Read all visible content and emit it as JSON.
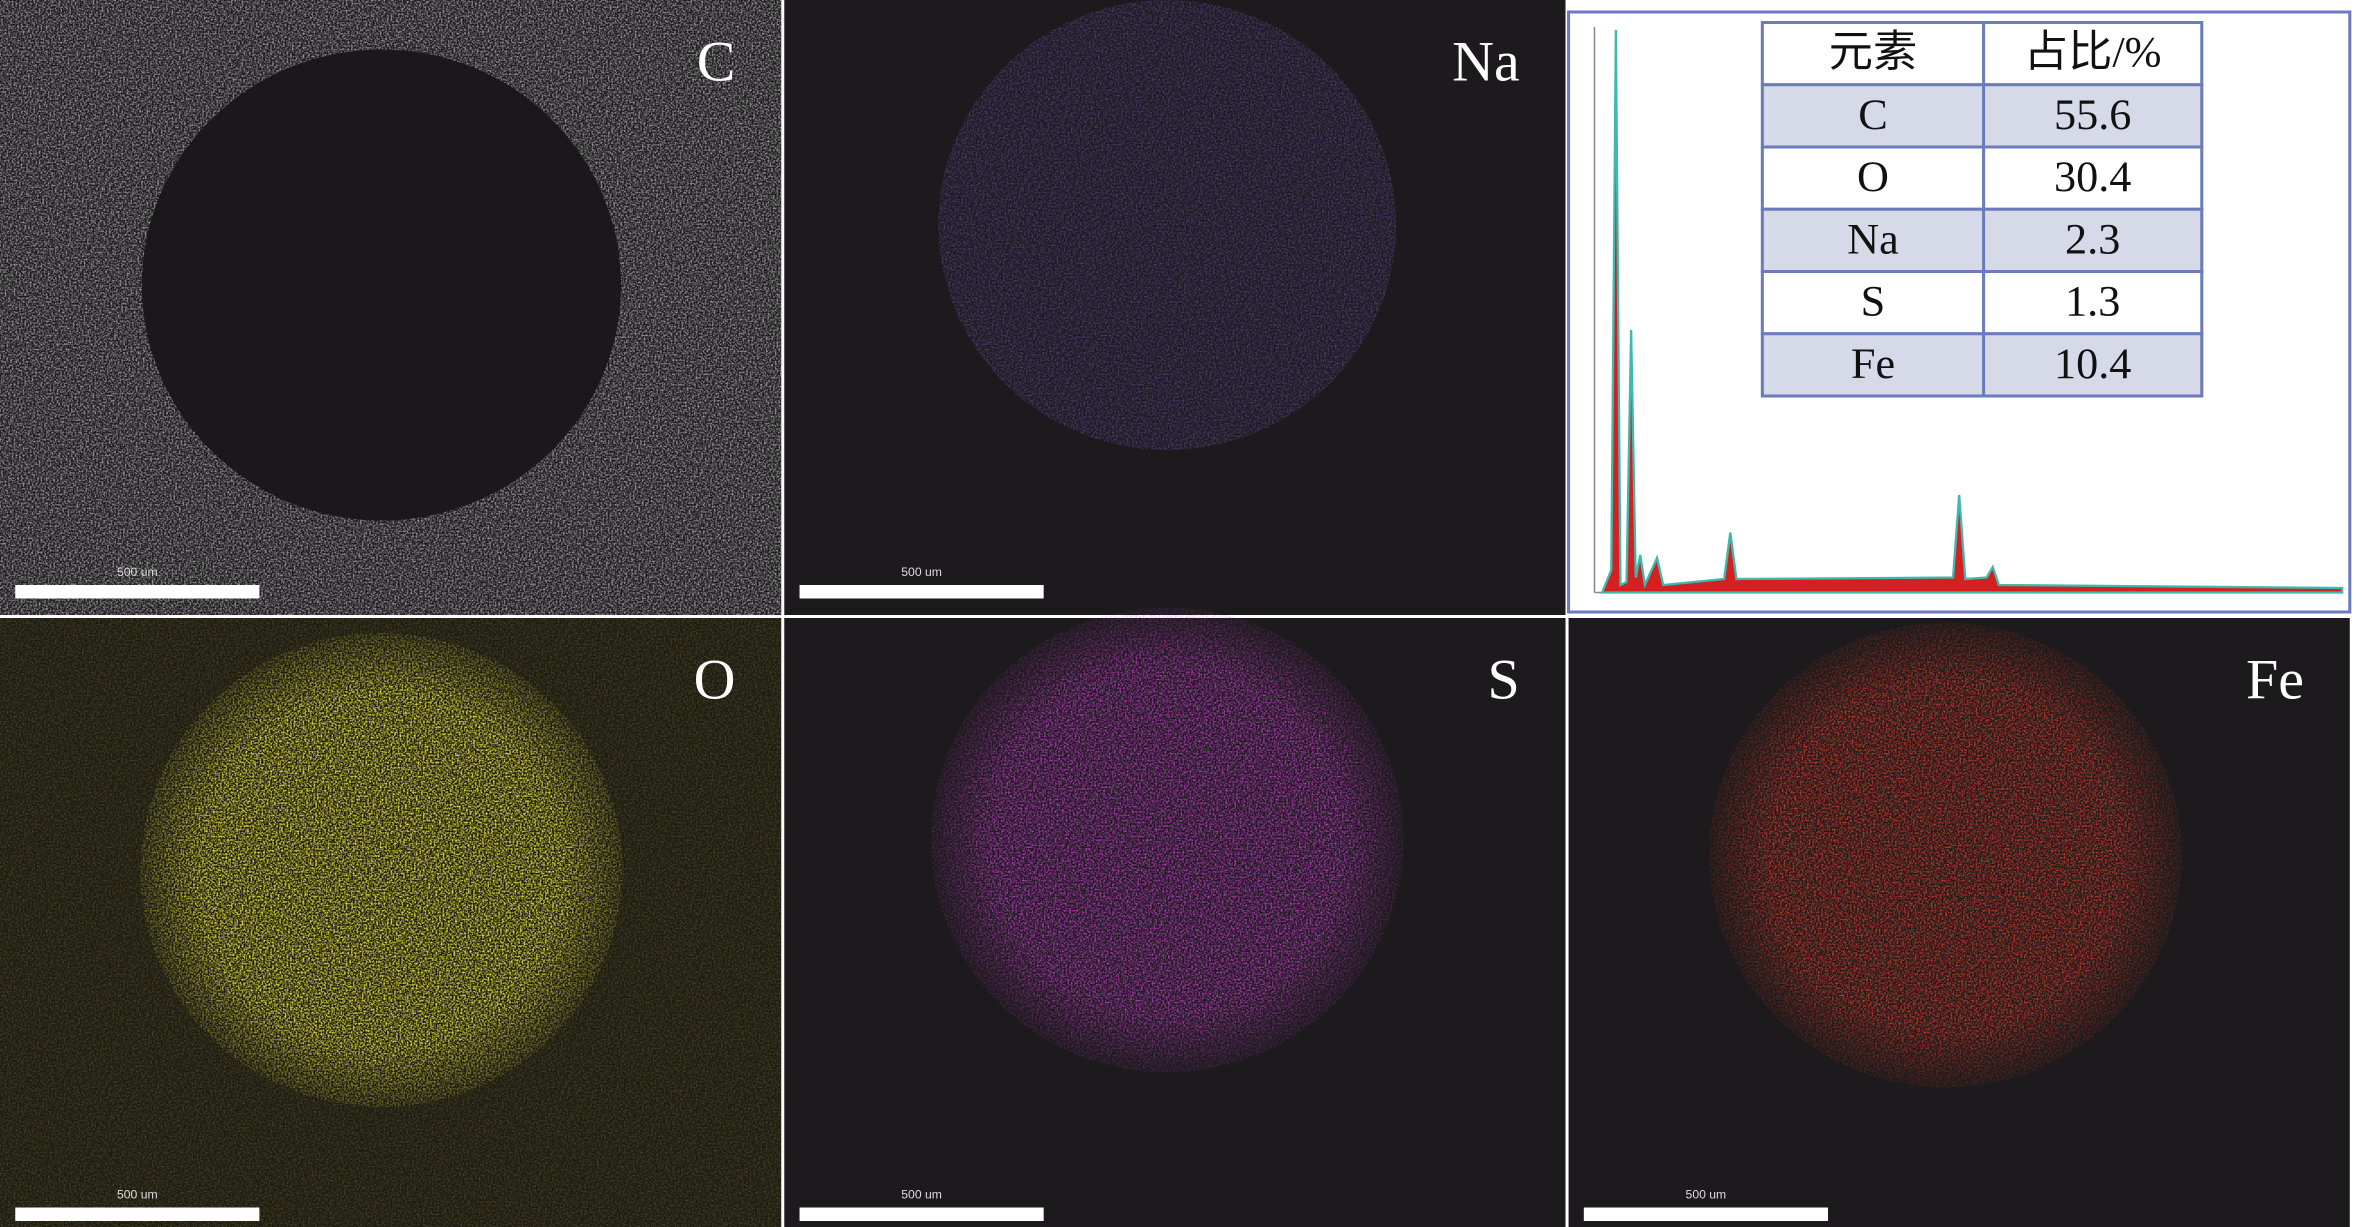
{
  "panels": [
    {
      "label": "C",
      "scale_bar": "500 um"
    },
    {
      "label": "Na",
      "scale_bar": "500 um"
    },
    {
      "label": "O",
      "scale_bar": "500 um"
    },
    {
      "label": "S",
      "scale_bar": "500 um"
    },
    {
      "label": "Fe",
      "scale_bar": "500 um"
    }
  ],
  "table": {
    "header": [
      "元素",
      "占比/%"
    ],
    "rows": [
      [
        "C",
        55.6
      ],
      [
        "O",
        30.4
      ],
      [
        "Na",
        2.3
      ],
      [
        "S",
        1.3
      ],
      [
        "Fe",
        10.4
      ]
    ]
  }
}
